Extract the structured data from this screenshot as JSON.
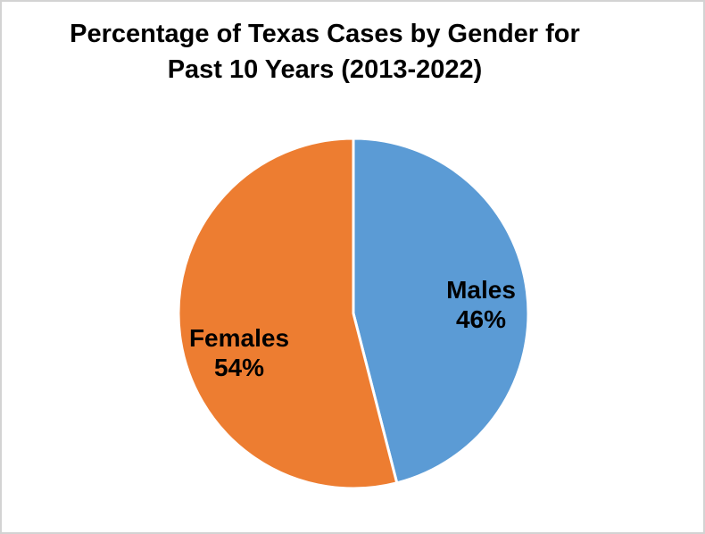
{
  "frame": {
    "background": "#FFFFFF",
    "border_color": "#D3D3D3"
  },
  "chart_title": {
    "full": "Percentage of Texas Cases by Gender for Past 10 Years (2013-2022)",
    "lines": [
      "Percentage of Texas Cases by Gender for",
      "Past 10 Years (2013-2022)"
    ]
  },
  "chart_data": {
    "type": "pie",
    "title": "Percentage of Texas Cases by Gender for Past 10 Years (2013-2022)",
    "categories": [
      "Males",
      "Females"
    ],
    "values": [
      46,
      54
    ],
    "unit": "%",
    "slice_label_lines": [
      [
        "Males",
        "46%"
      ],
      [
        "Females",
        "54%"
      ]
    ],
    "colors": [
      "#5B9BD5",
      "#ED7D31"
    ],
    "separator_color": "#FFFFFF",
    "label_color": "#000000",
    "start": "top",
    "direction": "clockwise",
    "legend": "none"
  }
}
